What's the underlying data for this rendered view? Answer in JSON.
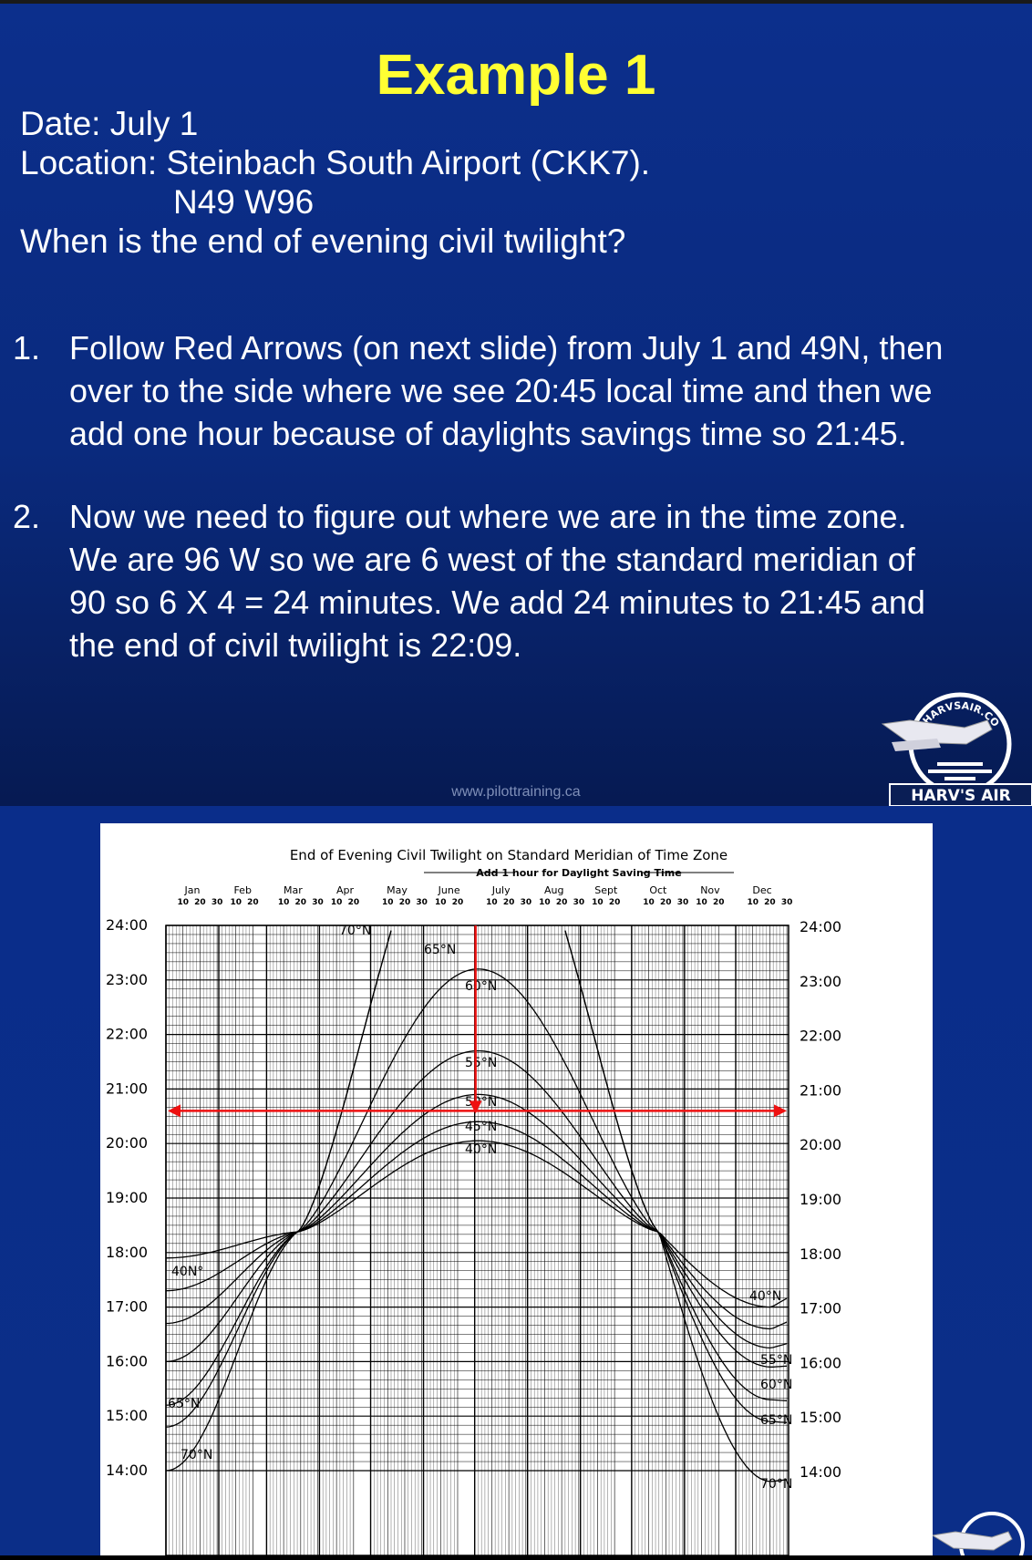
{
  "slide1": {
    "title": "Example 1",
    "date": "Date: July 1",
    "location": "Location: Steinbach South Airport (CKK7).",
    "coords": "N49  W96",
    "question": "When is the end of evening civil twilight?",
    "steps": [
      {
        "num": "1.",
        "lines": [
          "Follow Red Arrows (on next slide) from July 1 and 49N, then",
          "over to the side where we see 20:45 local time and then we",
          "add one hour because of daylights savings time so 21:45."
        ]
      },
      {
        "num": "2.",
        "lines": [
          "Now we need to figure out where we are in the time zone.",
          "We are 96 W so we are 6 west of the standard meridian of",
          "90 so 6 X 4 = 24 minutes.  We add 24 minutes to 21:45 and",
          "the end of civil twilight is 22:09."
        ]
      }
    ],
    "footer_url": "www.pilottraining.ca",
    "logo_arc_text": "HARVSAIR.COM",
    "logo_name": "HARV'S AIR"
  },
  "chart_data": {
    "type": "line",
    "title": "End of Evening Civil Twilight on Standard Meridian of Time Zone",
    "subtitle": "Add 1 hour for Daylight Saving Time",
    "months": [
      "Jan",
      "Feb",
      "Mar",
      "Apr",
      "May",
      "June",
      "July",
      "Aug",
      "Sept",
      "Oct",
      "Nov",
      "Dec"
    ],
    "day_ticks": [
      "10",
      "20",
      "30"
    ],
    "y_ticks": [
      "24:00",
      "23:00",
      "22:00",
      "21:00",
      "20:00",
      "19:00",
      "18:00",
      "17:00",
      "16:00",
      "15:00",
      "14:00"
    ],
    "ylim": [
      14,
      24
    ],
    "series": [
      {
        "name": "40°N",
        "label_left": "40N°",
        "label_right": "40°N",
        "jan1": 17.9,
        "jun21": 20.05,
        "dec21": 17.0
      },
      {
        "name": "45°N",
        "label_right": "",
        "jan1": 17.3,
        "jun21": 20.4,
        "dec21": 16.6
      },
      {
        "name": "50°N",
        "label_right": "",
        "jan1": 16.7,
        "jun21": 20.9,
        "dec21": 16.25
      },
      {
        "name": "55°N",
        "label_right": "55°N",
        "jan1": 16.0,
        "jun21": 21.7,
        "dec21": 15.9
      },
      {
        "name": "60°N",
        "label_right": "60°N",
        "jan1": 15.2,
        "jun21": 23.2,
        "dec21": 15.3
      },
      {
        "name": "65°N",
        "label_left": "65°N",
        "label_right": "65°N",
        "jan1": 14.8,
        "dec21": 14.9
      },
      {
        "name": "70°N",
        "label_left": "70°N",
        "label_right": "70°N",
        "jan1": 14.0,
        "dec21": 13.8
      }
    ],
    "curve_labels_mid": [
      "70°N",
      "65°N",
      "60°N",
      "55°N",
      "50°N",
      "45°N",
      "40°N"
    ],
    "annotation": {
      "date": "July 1",
      "latitude": "49N",
      "time": "20:45",
      "color": "#ee1111"
    },
    "grid": true
  },
  "colors": {
    "title_yellow": "#ffff33",
    "slide_blue": "#0a2a7e",
    "arrow_red": "#ee1111"
  }
}
